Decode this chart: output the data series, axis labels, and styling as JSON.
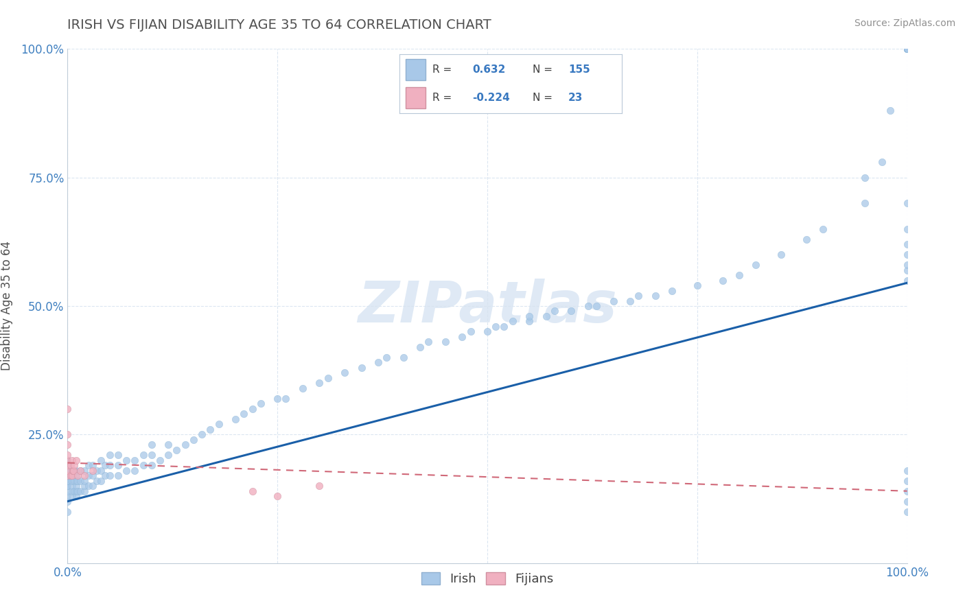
{
  "title": "IRISH VS FIJIAN DISABILITY AGE 35 TO 64 CORRELATION CHART",
  "source": "Source: ZipAtlas.com",
  "ylabel": "Disability Age 35 to 64",
  "irish_R": "0.632",
  "irish_N": "155",
  "fijian_R": "-0.224",
  "fijian_N": "23",
  "irish_color": "#a8c8e8",
  "irish_line_color": "#1a5fa8",
  "fijian_color": "#f0b0c0",
  "fijian_line_color": "#d06878",
  "background_color": "#ffffff",
  "watermark_text": "ZIPatlas",
  "title_color": "#505050",
  "tick_color": "#4080c0",
  "ylabel_color": "#505050",
  "grid_color": "#d8e4f0",
  "irish_x": [
    0.0,
    0.0,
    0.0,
    0.0,
    0.0,
    0.0,
    0.0,
    0.0,
    0.0,
    0.0,
    0.0,
    0.0,
    0.0,
    0.0,
    0.0,
    0.0,
    0.0,
    0.0,
    0.0,
    0.0,
    0.005,
    0.005,
    0.005,
    0.005,
    0.005,
    0.005,
    0.008,
    0.008,
    0.008,
    0.01,
    0.01,
    0.01,
    0.01,
    0.01,
    0.01,
    0.012,
    0.012,
    0.015,
    0.015,
    0.015,
    0.02,
    0.02,
    0.02,
    0.02,
    0.025,
    0.025,
    0.025,
    0.03,
    0.03,
    0.03,
    0.035,
    0.035,
    0.04,
    0.04,
    0.04,
    0.045,
    0.045,
    0.05,
    0.05,
    0.05,
    0.06,
    0.06,
    0.06,
    0.07,
    0.07,
    0.08,
    0.08,
    0.09,
    0.09,
    0.1,
    0.1,
    0.1,
    0.11,
    0.12,
    0.12,
    0.13,
    0.14,
    0.15,
    0.16,
    0.17,
    0.18,
    0.2,
    0.21,
    0.22,
    0.23,
    0.25,
    0.26,
    0.28,
    0.3,
    0.31,
    0.33,
    0.35,
    0.37,
    0.38,
    0.4,
    0.42,
    0.43,
    0.45,
    0.47,
    0.48,
    0.5,
    0.51,
    0.52,
    0.53,
    0.55,
    0.55,
    0.57,
    0.58,
    0.6,
    0.62,
    0.63,
    0.65,
    0.67,
    0.68,
    0.7,
    0.72,
    0.75,
    0.78,
    0.8,
    0.82,
    0.85,
    0.88,
    0.9,
    0.95,
    0.95,
    0.97,
    0.98,
    1.0,
    1.0,
    1.0,
    1.0,
    1.0,
    1.0,
    1.0,
    1.0,
    1.0,
    1.0,
    1.0,
    1.0,
    1.0,
    1.0,
    1.0,
    1.0,
    1.0,
    1.0,
    1.0,
    1.0,
    1.0,
    1.0,
    1.0,
    1.0,
    1.0,
    1.0,
    1.0,
    1.0,
    1.0
  ],
  "irish_y": [
    0.1,
    0.12,
    0.13,
    0.14,
    0.15,
    0.15,
    0.16,
    0.16,
    0.16,
    0.17,
    0.17,
    0.17,
    0.17,
    0.18,
    0.18,
    0.18,
    0.18,
    0.19,
    0.19,
    0.2,
    0.13,
    0.14,
    0.15,
    0.16,
    0.17,
    0.18,
    0.14,
    0.16,
    0.18,
    0.13,
    0.14,
    0.15,
    0.16,
    0.17,
    0.18,
    0.14,
    0.16,
    0.14,
    0.16,
    0.18,
    0.14,
    0.15,
    0.16,
    0.18,
    0.15,
    0.17,
    0.19,
    0.15,
    0.17,
    0.19,
    0.16,
    0.18,
    0.16,
    0.18,
    0.2,
    0.17,
    0.19,
    0.17,
    0.19,
    0.21,
    0.17,
    0.19,
    0.21,
    0.18,
    0.2,
    0.18,
    0.2,
    0.19,
    0.21,
    0.19,
    0.21,
    0.23,
    0.2,
    0.21,
    0.23,
    0.22,
    0.23,
    0.24,
    0.25,
    0.26,
    0.27,
    0.28,
    0.29,
    0.3,
    0.31,
    0.32,
    0.32,
    0.34,
    0.35,
    0.36,
    0.37,
    0.38,
    0.39,
    0.4,
    0.4,
    0.42,
    0.43,
    0.43,
    0.44,
    0.45,
    0.45,
    0.46,
    0.46,
    0.47,
    0.47,
    0.48,
    0.48,
    0.49,
    0.49,
    0.5,
    0.5,
    0.51,
    0.51,
    0.52,
    0.52,
    0.53,
    0.54,
    0.55,
    0.56,
    0.58,
    0.6,
    0.63,
    0.65,
    0.7,
    0.75,
    0.78,
    0.88,
    0.1,
    0.12,
    0.14,
    0.16,
    0.18,
    0.55,
    0.57,
    0.58,
    0.6,
    0.62,
    0.65,
    0.7,
    1.0,
    1.0,
    1.0,
    1.0,
    1.0,
    1.0,
    1.0,
    1.0,
    1.0,
    1.0,
    1.0,
    1.0,
    1.0,
    1.0,
    1.0,
    1.0,
    1.0
  ],
  "fijian_x": [
    0.0,
    0.0,
    0.0,
    0.0,
    0.0,
    0.0,
    0.0,
    0.0,
    0.004,
    0.004,
    0.005,
    0.005,
    0.006,
    0.007,
    0.008,
    0.01,
    0.012,
    0.015,
    0.02,
    0.03,
    0.22,
    0.25,
    0.3
  ],
  "fijian_y": [
    0.17,
    0.18,
    0.19,
    0.2,
    0.21,
    0.23,
    0.25,
    0.3,
    0.17,
    0.19,
    0.17,
    0.2,
    0.18,
    0.18,
    0.19,
    0.2,
    0.17,
    0.18,
    0.17,
    0.18,
    0.14,
    0.13,
    0.15
  ],
  "irish_regr": [
    0.12,
    0.545
  ],
  "fijian_regr": [
    0.195,
    0.14
  ],
  "xlim": [
    0,
    1
  ],
  "ylim": [
    0,
    1
  ],
  "xticks": [
    0,
    0.25,
    0.5,
    0.75,
    1.0
  ],
  "xticklabels": [
    "0.0%",
    "",
    "",
    "",
    "100.0%"
  ],
  "yticks": [
    0,
    0.25,
    0.5,
    0.75,
    1.0
  ],
  "yticklabels": [
    "",
    "25.0%",
    "50.0%",
    "75.0%",
    "100.0%"
  ]
}
